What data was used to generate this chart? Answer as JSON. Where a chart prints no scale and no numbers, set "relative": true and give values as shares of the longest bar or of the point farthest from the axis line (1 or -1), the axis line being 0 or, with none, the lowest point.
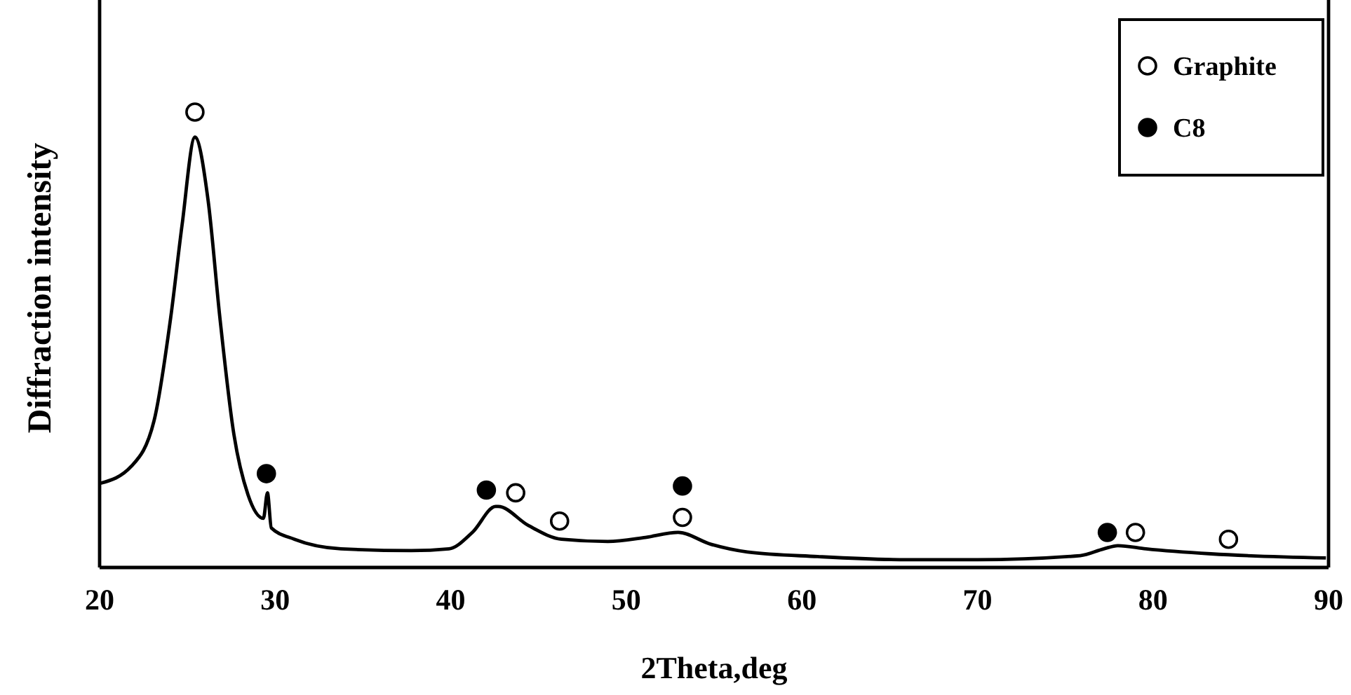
{
  "chart_data": {
    "type": "line",
    "xlabel": "2Theta,deg",
    "ylabel": "Diffraction intensity",
    "relative": true,
    "xlim": [
      20,
      90
    ],
    "xticks": [
      20,
      30,
      40,
      50,
      60,
      70,
      80,
      90
    ],
    "legend": "top right",
    "grid": false,
    "series": [
      {
        "color": "#000000",
        "marker": "none",
        "line_style": "solid",
        "x": [
          20.05,
          21.8,
          23.1,
          24.05,
          24.7,
          25.43,
          26.18,
          26.85,
          27.65,
          28.45,
          29.33,
          29.56,
          29.78,
          31.1,
          33.75,
          37.75,
          39.9,
          41.23,
          42.56,
          42.7,
          44.43,
          46.3,
          48.95,
          51.09,
          52.95,
          54.82,
          56.9,
          60.9,
          66.0,
          70.0,
          75.86,
          77.2,
          78.0,
          79.6,
          83.3,
          89.85
        ],
        "values": [
          0.185,
          0.222,
          0.322,
          0.549,
          0.753,
          0.945,
          0.806,
          0.549,
          0.292,
          0.16,
          0.108,
          0.164,
          0.087,
          0.062,
          0.041,
          0.037,
          0.041,
          0.077,
          0.134,
          0.134,
          0.092,
          0.062,
          0.057,
          0.066,
          0.077,
          0.051,
          0.034,
          0.024,
          0.017,
          0.017,
          0.026,
          0.041,
          0.048,
          0.041,
          0.03,
          0.021
        ]
      },
      {
        "type": "scatter",
        "name": "Graphite",
        "color": "#ffffff",
        "marker": "circle",
        "x": [
          25.43,
          43.7,
          46.2,
          53.2,
          79.0,
          84.3
        ],
        "values": [
          1.0,
          0.164,
          0.102,
          0.11,
          0.077,
          0.062
        ]
      },
      {
        "type": "scatter",
        "name": "C8",
        "color": "#000000",
        "marker": "circle",
        "x": [
          29.5,
          42.03,
          53.2,
          77.4
        ],
        "values": [
          0.206,
          0.17,
          0.179,
          0.077
        ]
      }
    ]
  }
}
